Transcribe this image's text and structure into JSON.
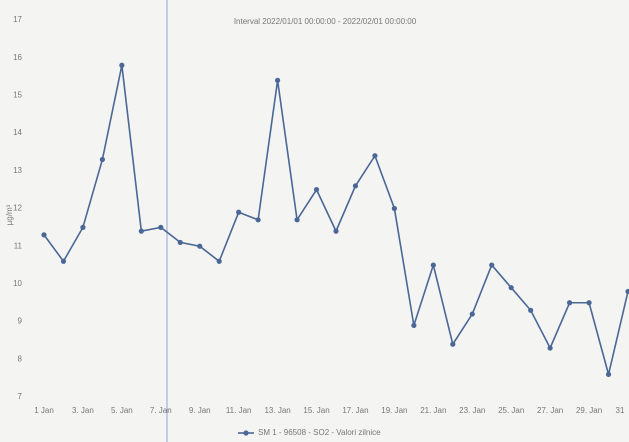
{
  "chart_data": {
    "type": "line",
    "title": "Interval 2022/01/01 00:00:00 - 2022/02/01 00:00:00",
    "y_label": "µg/m³",
    "categories": [
      "1 Jan",
      null,
      "3. Jan",
      null,
      "5. Jan",
      null,
      "7. Jan",
      null,
      "9. Jan",
      null,
      "11. Jan",
      null,
      "13. Jan",
      null,
      "15. Jan",
      null,
      "17. Jan",
      null,
      "19. Jan",
      null,
      "21. Jan",
      null,
      "23. Jan",
      null,
      "25. Jan",
      null,
      "27. Jan",
      null,
      "29. Jan",
      null,
      "31"
    ],
    "series": [
      {
        "name": "SM 1 - 96508 - SO2 - Valori zilnice",
        "color": "#4a6796",
        "values": [
          11.3,
          10.6,
          11.5,
          13.3,
          15.8,
          11.4,
          11.5,
          11.1,
          11.0,
          10.6,
          11.9,
          11.7,
          15.4,
          11.7,
          12.5,
          11.4,
          12.6,
          13.4,
          12.0,
          8.9,
          10.5,
          8.4,
          9.2,
          10.5,
          9.9,
          9.3,
          8.3,
          9.5,
          9.5,
          7.6,
          9.8
        ]
      }
    ],
    "ylim": [
      7,
      17
    ],
    "yticks": [
      7,
      8,
      9,
      10,
      11,
      12,
      13,
      14,
      15,
      16,
      17
    ],
    "grid": false
  }
}
